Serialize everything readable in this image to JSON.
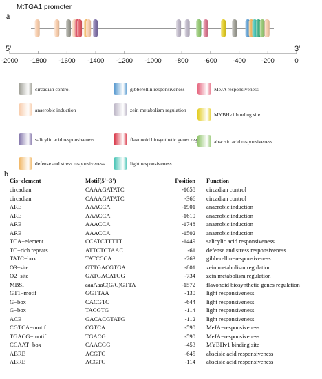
{
  "panel_a": {
    "letter": "a",
    "title": "MtTGA1 promoter",
    "five_prime": "5'",
    "three_prime": "3'",
    "axis_ticks": [
      "-2000",
      "-1800",
      "-1600",
      "-1400",
      "-1200",
      "-1000",
      "-800",
      "-600",
      "-400",
      "-200",
      "0"
    ],
    "tick_values": [
      -2000,
      -1800,
      -1600,
      -1400,
      -1200,
      -1000,
      -800,
      -600,
      -400,
      -200,
      0
    ],
    "track_range": [
      -1950,
      -60
    ],
    "markers": [
      {
        "pos": -1901,
        "color": "#f7c9a6"
      },
      {
        "pos": -1748,
        "color": "#f7c9a6"
      },
      {
        "pos": -1658,
        "color": "#9a9a90"
      },
      {
        "pos": -1610,
        "color": "#f7c9a6"
      },
      {
        "pos": -1590,
        "color": "#d43a4e"
      },
      {
        "pos": -1572,
        "color": "#e0525e"
      },
      {
        "pos": -1520,
        "color": "#f0b25a"
      },
      {
        "pos": -1502,
        "color": "#f7c9a6"
      },
      {
        "pos": -1449,
        "color": "#7d6ea6"
      },
      {
        "pos": -801,
        "color": "#b9b2c3"
      },
      {
        "pos": -734,
        "color": "#b9b2c3"
      },
      {
        "pos": -644,
        "color": "#3cc0b0"
      },
      {
        "pos": -645,
        "color": "#8fc46a"
      },
      {
        "pos": -590,
        "color": "#d8708a"
      },
      {
        "pos": -453,
        "color": "#e3cc1f"
      },
      {
        "pos": -366,
        "color": "#9a9a90"
      },
      {
        "pos": -263,
        "color": "#4d93cc"
      },
      {
        "pos": -236,
        "color": "#f0b25a"
      },
      {
        "pos": -210,
        "color": "#3cc0b0"
      },
      {
        "pos": -180,
        "color": "#2ca87c"
      },
      {
        "pos": -150,
        "color": "#8fc46a"
      },
      {
        "pos": -114,
        "color": "#d8708a"
      },
      {
        "pos": -112,
        "color": "#f7c9a6"
      }
    ]
  },
  "legend": [
    {
      "label": "circadian control",
      "color": "#9a9a90"
    },
    {
      "label": "gibberellin responsiveness",
      "color": "#4d93cc"
    },
    {
      "label": "MeJA responsiveness",
      "color": "#e5657e"
    },
    {
      "label": "anaerobic induction",
      "color": "#f7c9a6"
    },
    {
      "label": "zein metabolism regulation",
      "color": "#b9b2c3"
    },
    {
      "label": "MYBHv1 binding site",
      "color": "#e3cc1f"
    },
    {
      "label": "salicylic acid responsiveness",
      "color": "#7d6ea6"
    },
    {
      "label": "flavonoid biosynthetic genes regulation",
      "color": "#d62a3c"
    },
    {
      "label": "abscisic acid responsiveness",
      "color": "#8fc46a"
    },
    {
      "label": "defense and stress responsiveness",
      "color": "#f0b25a"
    },
    {
      "label": "light responsiveness",
      "color": "#3cc0b0"
    }
  ],
  "panel_b": {
    "letter": "b",
    "headers": [
      "Cis−element",
      "Motif(5'−3')",
      "Position",
      "Function"
    ],
    "rows": [
      [
        "circadian",
        "CAAAGATATC",
        "-1658",
        "circadian control"
      ],
      [
        "circadian",
        "CAAAGATATC",
        "-366",
        "circadian control"
      ],
      [
        "ARE",
        "AAACCA",
        "-1901",
        "anaerobic induction"
      ],
      [
        "ARE",
        "AAACCA",
        "-1610",
        "anaerobic induction"
      ],
      [
        "ARE",
        "AAACCA",
        "-1748",
        "anaerobic induction"
      ],
      [
        "ARE",
        "AAACCA",
        "-1502",
        "anaerobic induction"
      ],
      [
        "TCA−element",
        "CCATCTTTTT",
        "-1449",
        "salicylic acid responsiveness"
      ],
      [
        "TC−rich repeats",
        "ATTCTCTAAC",
        "-61",
        "defense and stress responsiveness"
      ],
      [
        "TATC−box",
        "TATCCCA",
        "-263",
        "gibberellin−responsiveness"
      ],
      [
        "O3−site",
        "GTTGACGTGA",
        "-801",
        "zein metabolism regulation"
      ],
      [
        "O2−site",
        "GATGACATGG",
        "-734",
        "zein metabolism regulation"
      ],
      [
        "MBSI",
        "aaaAaaC(G/C)GTTA",
        "-1572",
        "flavonoid biosynthetic genes regulation"
      ],
      [
        "GT1−motif",
        "GGTTAA",
        "-130",
        "light responsiveness"
      ],
      [
        "G−box",
        "CACGTC",
        "-644",
        "light responsiveness"
      ],
      [
        "G−box",
        "TACGTG",
        "-114",
        "light responsiveness"
      ],
      [
        "ACE",
        "GACACGTATG",
        "-112",
        "light responsiveness"
      ],
      [
        "CGTCA−motif",
        "CGTCA",
        "-590",
        "MeJA−responsiveness"
      ],
      [
        "TGACG−motif",
        "TGACG",
        "-590",
        "MeJA−responsiveness"
      ],
      [
        "CCAAT−box",
        "CAACGG",
        "-453",
        "MYBHv1 binding site"
      ],
      [
        "ABRE",
        "ACGTG",
        "-645",
        "abscisic acid responsiveness"
      ],
      [
        "ABRE",
        "ACGTG",
        "-114",
        "abscisic acid responsiveness"
      ]
    ]
  }
}
